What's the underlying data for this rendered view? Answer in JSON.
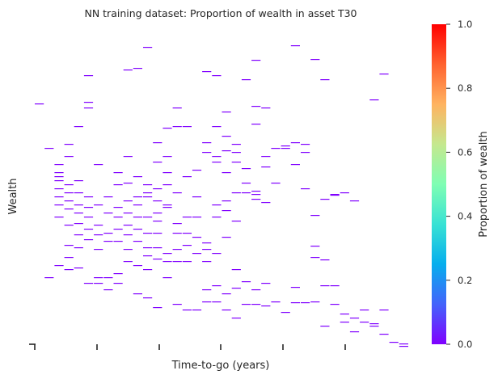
{
  "chart_data": {
    "type": "heatmap",
    "title": "NN training dataset: Proportion of wealth in asset T30",
    "xlabel": "Time-to-go (years)",
    "ylabel": "Wealth",
    "grid": false,
    "x_tick_labels": [
      "",
      "",
      "",
      "",
      "",
      ""
    ],
    "y_tick_labels": [],
    "colorbar": {
      "label": "Proportion of wealth",
      "range": [
        0.0,
        1.0
      ],
      "ticks": [
        "0.0",
        "0.2",
        "0.4",
        "0.6",
        "0.8",
        "1.0"
      ],
      "colormap": [
        "#8000ff",
        "#4363fb",
        "#06aeed",
        "#38e2d4",
        "#7ffeb3",
        "#c5e88e",
        "#ffb360",
        "#ff622f",
        "#ff0000"
      ]
    },
    "marks_note_value": 0.0,
    "cells": [
      [
        0,
        100,
        0
      ],
      [
        1,
        155,
        0
      ],
      [
        1,
        315,
        0
      ],
      [
        2,
        175,
        0
      ],
      [
        2,
        185,
        0
      ],
      [
        2,
        190,
        0
      ],
      [
        2,
        195,
        0
      ],
      [
        2,
        205,
        0
      ],
      [
        2,
        215,
        0
      ],
      [
        2,
        225,
        0
      ],
      [
        2,
        240,
        0
      ],
      [
        2,
        300,
        0
      ],
      [
        3,
        150,
        0
      ],
      [
        3,
        165,
        0
      ],
      [
        3,
        200,
        0
      ],
      [
        3,
        210,
        0
      ],
      [
        3,
        220,
        0
      ],
      [
        3,
        230,
        0
      ],
      [
        3,
        250,
        0
      ],
      [
        3,
        275,
        0
      ],
      [
        3,
        290,
        0
      ],
      [
        3,
        305,
        0
      ],
      [
        4,
        128,
        0
      ],
      [
        4,
        195,
        0
      ],
      [
        4,
        210,
        0
      ],
      [
        4,
        225,
        0
      ],
      [
        4,
        235,
        0
      ],
      [
        4,
        248,
        0
      ],
      [
        4,
        262,
        0
      ],
      [
        4,
        278,
        0
      ],
      [
        4,
        303,
        0
      ],
      [
        5,
        65,
        0
      ],
      [
        5,
        98,
        0
      ],
      [
        5,
        105,
        0
      ],
      [
        5,
        215,
        0
      ],
      [
        5,
        228,
        0
      ],
      [
        5,
        240,
        0
      ],
      [
        5,
        255,
        0
      ],
      [
        5,
        268,
        0
      ],
      [
        5,
        322,
        0
      ],
      [
        6,
        175,
        0
      ],
      [
        6,
        225,
        0
      ],
      [
        6,
        250,
        0
      ],
      [
        6,
        262,
        0
      ],
      [
        6,
        280,
        0
      ],
      [
        6,
        315,
        0
      ],
      [
        6,
        322,
        0
      ],
      [
        7,
        215,
        0
      ],
      [
        7,
        235,
        0
      ],
      [
        7,
        260,
        0
      ],
      [
        7,
        270,
        0
      ],
      [
        7,
        315,
        0
      ],
      [
        7,
        330,
        0
      ],
      [
        8,
        185,
        0
      ],
      [
        8,
        200,
        0
      ],
      [
        8,
        228,
        0
      ],
      [
        8,
        240,
        0
      ],
      [
        8,
        255,
        0
      ],
      [
        8,
        270,
        0
      ],
      [
        8,
        310,
        0
      ],
      [
        8,
        322,
        0
      ],
      [
        9,
        58,
        0
      ],
      [
        9,
        165,
        0
      ],
      [
        9,
        198,
        0
      ],
      [
        9,
        220,
        0
      ],
      [
        9,
        235,
        0
      ],
      [
        9,
        250,
        0
      ],
      [
        9,
        262,
        0
      ],
      [
        9,
        280,
        0
      ],
      [
        9,
        295,
        0
      ],
      [
        10,
        56,
        0
      ],
      [
        10,
        190,
        0
      ],
      [
        10,
        215,
        0
      ],
      [
        10,
        225,
        0
      ],
      [
        10,
        240,
        0
      ],
      [
        10,
        255,
        0
      ],
      [
        10,
        270,
        0
      ],
      [
        10,
        300,
        0
      ],
      [
        10,
        335,
        0
      ],
      [
        11,
        30,
        0
      ],
      [
        11,
        200,
        0
      ],
      [
        11,
        210,
        0
      ],
      [
        11,
        215,
        0
      ],
      [
        11,
        240,
        0
      ],
      [
        11,
        260,
        0
      ],
      [
        11,
        278,
        0
      ],
      [
        11,
        288,
        0
      ],
      [
        11,
        305,
        0
      ],
      [
        11,
        340,
        0
      ],
      [
        12,
        148,
        0
      ],
      [
        12,
        172,
        0
      ],
      [
        12,
        205,
        0
      ],
      [
        12,
        220,
        0
      ],
      [
        12,
        235,
        0
      ],
      [
        12,
        245,
        0
      ],
      [
        12,
        260,
        0
      ],
      [
        12,
        278,
        0
      ],
      [
        12,
        292,
        0
      ],
      [
        12,
        352,
        0
      ],
      [
        13,
        130,
        0
      ],
      [
        13,
        165,
        0
      ],
      [
        13,
        185,
        0
      ],
      [
        13,
        200,
        0
      ],
      [
        13,
        225,
        0
      ],
      [
        13,
        228,
        0
      ],
      [
        13,
        285,
        0
      ],
      [
        13,
        295,
        0
      ],
      [
        13,
        315,
        0
      ],
      [
        14,
        105,
        0
      ],
      [
        14,
        128,
        0
      ],
      [
        14,
        210,
        0
      ],
      [
        14,
        248,
        0
      ],
      [
        14,
        260,
        0
      ],
      [
        14,
        280,
        0
      ],
      [
        14,
        295,
        0
      ],
      [
        14,
        348,
        0
      ],
      [
        15,
        128,
        0
      ],
      [
        15,
        190,
        0
      ],
      [
        15,
        240,
        0
      ],
      [
        15,
        260,
        0
      ],
      [
        15,
        275,
        0
      ],
      [
        15,
        295,
        0
      ],
      [
        15,
        355,
        0
      ],
      [
        16,
        182,
        0
      ],
      [
        16,
        215,
        0
      ],
      [
        16,
        240,
        0
      ],
      [
        16,
        265,
        0
      ],
      [
        16,
        285,
        0
      ],
      [
        16,
        355,
        0
      ],
      [
        17,
        60,
        0
      ],
      [
        17,
        148,
        0
      ],
      [
        17,
        160,
        0
      ],
      [
        17,
        272,
        0
      ],
      [
        17,
        280,
        0
      ],
      [
        17,
        295,
        0
      ],
      [
        17,
        330,
        0
      ],
      [
        17,
        345,
        0
      ],
      [
        18,
        65,
        0
      ],
      [
        18,
        128,
        0
      ],
      [
        18,
        165,
        0
      ],
      [
        18,
        172,
        0
      ],
      [
        18,
        225,
        0
      ],
      [
        18,
        240,
        0
      ],
      [
        18,
        285,
        0
      ],
      [
        18,
        325,
        0
      ],
      [
        18,
        345,
        0
      ],
      [
        19,
        110,
        0
      ],
      [
        19,
        140,
        0
      ],
      [
        19,
        158,
        0
      ],
      [
        19,
        185,
        0
      ],
      [
        19,
        220,
        0
      ],
      [
        19,
        232,
        0
      ],
      [
        19,
        265,
        0
      ],
      [
        19,
        335,
        0
      ],
      [
        19,
        355,
        0
      ],
      [
        20,
        150,
        0
      ],
      [
        20,
        160,
        0
      ],
      [
        20,
        172,
        0
      ],
      [
        20,
        210,
        0
      ],
      [
        20,
        245,
        0
      ],
      [
        20,
        305,
        0
      ],
      [
        20,
        328,
        0
      ],
      [
        20,
        365,
        0
      ],
      [
        21,
        70,
        0
      ],
      [
        21,
        180,
        0
      ],
      [
        21,
        198,
        0
      ],
      [
        21,
        210,
        0
      ],
      [
        21,
        320,
        0
      ],
      [
        21,
        348,
        0
      ],
      [
        22,
        46,
        0
      ],
      [
        22,
        103,
        0
      ],
      [
        22,
        125,
        0
      ],
      [
        22,
        208,
        0
      ],
      [
        22,
        212,
        0
      ],
      [
        22,
        218,
        0
      ],
      [
        22,
        330,
        0
      ],
      [
        22,
        348,
        0
      ],
      [
        23,
        105,
        0
      ],
      [
        23,
        165,
        0
      ],
      [
        23,
        178,
        0
      ],
      [
        23,
        222,
        0
      ],
      [
        23,
        322,
        0
      ],
      [
        23,
        350,
        0
      ],
      [
        24,
        155,
        0
      ],
      [
        24,
        198,
        0
      ],
      [
        24,
        345,
        0
      ],
      [
        25,
        155,
        0
      ],
      [
        25,
        152,
        0
      ],
      [
        25,
        358,
        0
      ],
      [
        26,
        28,
        0
      ],
      [
        26,
        148,
        0
      ],
      [
        26,
        175,
        0
      ],
      [
        26,
        327,
        0
      ],
      [
        26,
        346,
        0
      ],
      [
        27,
        160,
        0
      ],
      [
        27,
        150,
        0
      ],
      [
        27,
        205,
        0
      ],
      [
        27,
        346,
        0
      ],
      [
        28,
        45,
        0
      ],
      [
        28,
        238,
        0
      ],
      [
        28,
        276,
        0
      ],
      [
        28,
        290,
        0
      ],
      [
        28,
        345,
        0
      ],
      [
        29,
        70,
        0
      ],
      [
        29,
        218,
        0
      ],
      [
        29,
        293,
        0
      ],
      [
        29,
        325,
        0
      ],
      [
        29,
        375,
        0
      ],
      [
        30,
        213,
        0
      ],
      [
        30,
        212,
        0
      ],
      [
        30,
        325,
        0
      ],
      [
        30,
        348,
        0
      ],
      [
        31,
        210,
        0
      ],
      [
        31,
        370,
        0
      ],
      [
        31,
        360,
        0
      ],
      [
        32,
        220,
        0
      ],
      [
        32,
        365,
        0
      ],
      [
        32,
        382,
        0
      ],
      [
        33,
        355,
        0
      ],
      [
        33,
        370,
        0
      ],
      [
        34,
        95,
        0
      ],
      [
        34,
        375,
        0
      ],
      [
        34,
        372,
        0
      ],
      [
        35,
        63,
        0
      ],
      [
        35,
        385,
        0
      ],
      [
        35,
        355,
        0
      ],
      [
        36,
        395,
        0
      ],
      [
        37,
        400,
        0
      ],
      [
        37,
        397,
        0
      ]
    ]
  }
}
